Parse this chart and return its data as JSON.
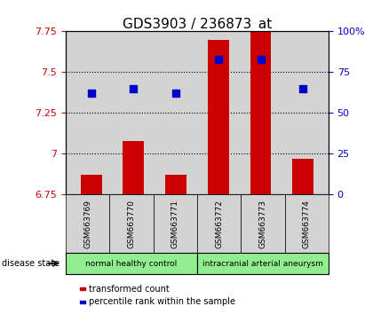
{
  "title": "GDS3903 / 236873_at",
  "samples": [
    "GSM663769",
    "GSM663770",
    "GSM663771",
    "GSM663772",
    "GSM663773",
    "GSM663774"
  ],
  "transformed_count": [
    6.87,
    7.08,
    6.87,
    7.7,
    7.75,
    6.97
  ],
  "percentile_rank": [
    62,
    65,
    62,
    83,
    83,
    65
  ],
  "ylim_left": [
    6.75,
    7.75
  ],
  "ylim_right": [
    0,
    100
  ],
  "yticks_left": [
    6.75,
    7.0,
    7.25,
    7.5,
    7.75
  ],
  "yticks_right": [
    0,
    25,
    50,
    75,
    100
  ],
  "ytick_labels_left": [
    "6.75",
    "7",
    "7.25",
    "7.5",
    "7.75"
  ],
  "ytick_labels_right": [
    "0",
    "25",
    "50",
    "75",
    "100%"
  ],
  "groups": [
    {
      "label": "normal healthy control",
      "start": 0,
      "end": 3
    },
    {
      "label": "intracranial arterial aneurysm",
      "start": 3,
      "end": 6
    }
  ],
  "bar_color": "#CC0000",
  "dot_color": "#0000CC",
  "bar_width": 0.5,
  "bar_bottom": 6.75,
  "legend_items": [
    {
      "label": "transformed count",
      "color": "#CC0000"
    },
    {
      "label": "percentile rank within the sample",
      "color": "#0000CC"
    }
  ],
  "disease_state_label": "disease state",
  "bg_color_plot": "#D3D3D3",
  "bg_color_group": "#90EE90",
  "gridlines": [
    7.0,
    7.25,
    7.5
  ]
}
